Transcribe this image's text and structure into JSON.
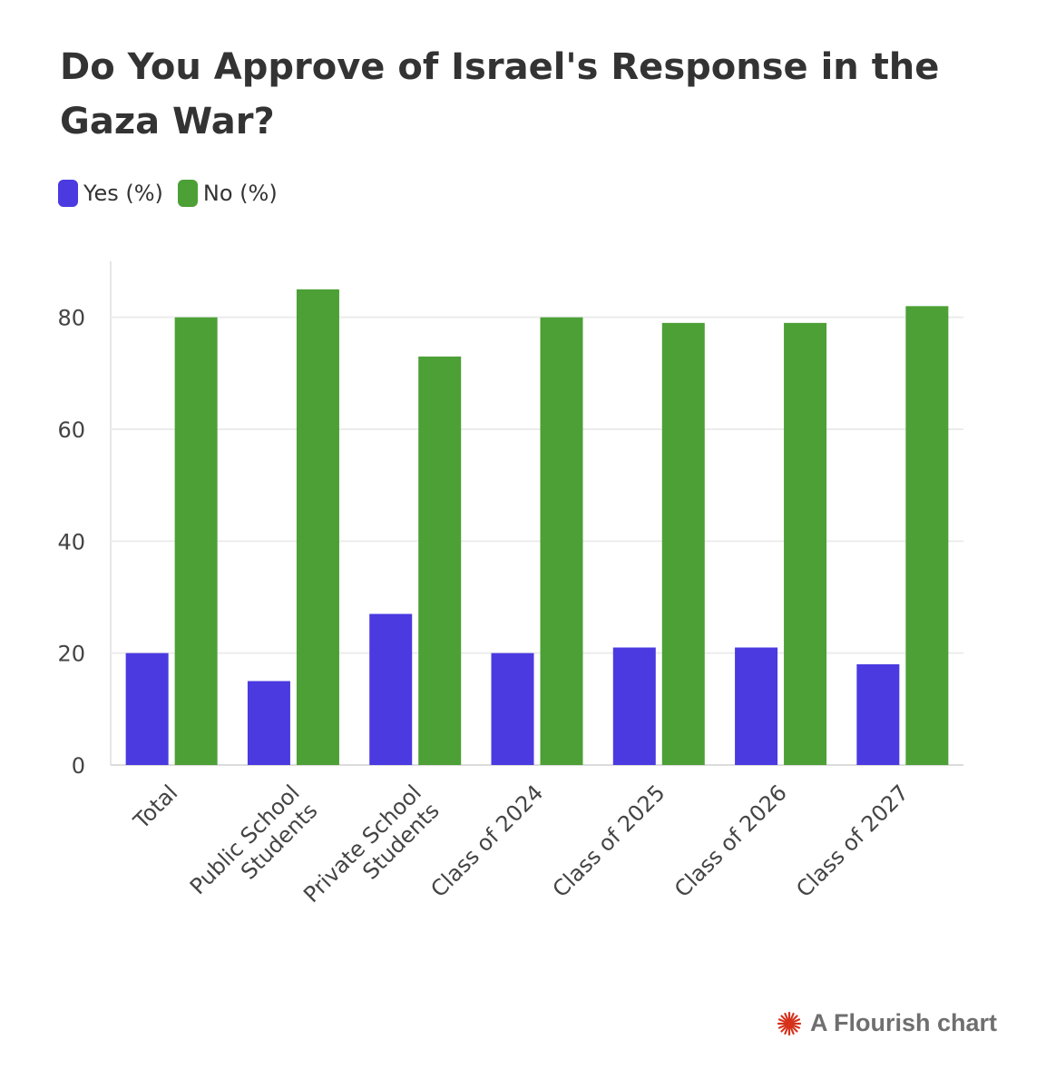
{
  "chart_data": {
    "type": "bar",
    "title": "Do You Approve of Israel's Response in the Gaza War?",
    "categories": [
      [
        "Total"
      ],
      [
        "Public School",
        "Students"
      ],
      [
        "Private School",
        "Students"
      ],
      [
        "Class of 2024"
      ],
      [
        "Class of 2025"
      ],
      [
        "Class of 2026"
      ],
      [
        "Class of 2027"
      ]
    ],
    "series": [
      {
        "name": "Yes (%)",
        "color": "#4a3ae0",
        "values": [
          20,
          15,
          27,
          20,
          21,
          21,
          18
        ]
      },
      {
        "name": "No (%)",
        "color": "#4ca035",
        "values": [
          80,
          85,
          73,
          80,
          79,
          79,
          82
        ]
      }
    ],
    "ylim": [
      0,
      90
    ],
    "yticks": [
      0,
      20,
      40,
      60,
      80
    ],
    "xlabel": "",
    "ylabel": "",
    "grid": true,
    "legend_position": "top-left"
  },
  "credit": {
    "text": "A Flourish chart",
    "icon": "flourish-logo-icon"
  }
}
